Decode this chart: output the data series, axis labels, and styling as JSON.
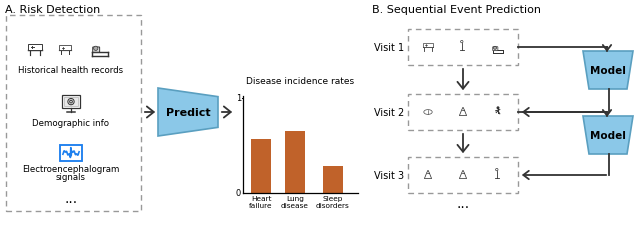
{
  "title_a": "A. Risk Detection",
  "title_b": "B. Sequential Event Prediction",
  "label_hist": "Historical health records",
  "label_demo": "Demographic info",
  "label_eeg_1": "Electroencephalogram",
  "label_eeg_2": "signals",
  "label_ellipsis": "...",
  "predict_label": "Predict",
  "bar_title": "Disease incidence rates",
  "bar_categories": [
    "Heart\nfailure",
    "Lung\ndisease",
    "Sleep\ndisorders"
  ],
  "bar_values": [
    0.57,
    0.65,
    0.28
  ],
  "bar_color": "#C0622A",
  "visit_labels": [
    "Visit 1",
    "Visit 2",
    "Visit 3"
  ],
  "model_label": "Model",
  "bg_color": "#ffffff",
  "predict_fill": "#8BC8E8",
  "predict_edge": "#5A9FC0",
  "model_fill": "#8BC8E8",
  "model_edge": "#5A9FC0",
  "dash_color": "#999999",
  "arrow_color": "#333333",
  "blue_icon": "#1e80ee",
  "icon_gray": "#333333"
}
